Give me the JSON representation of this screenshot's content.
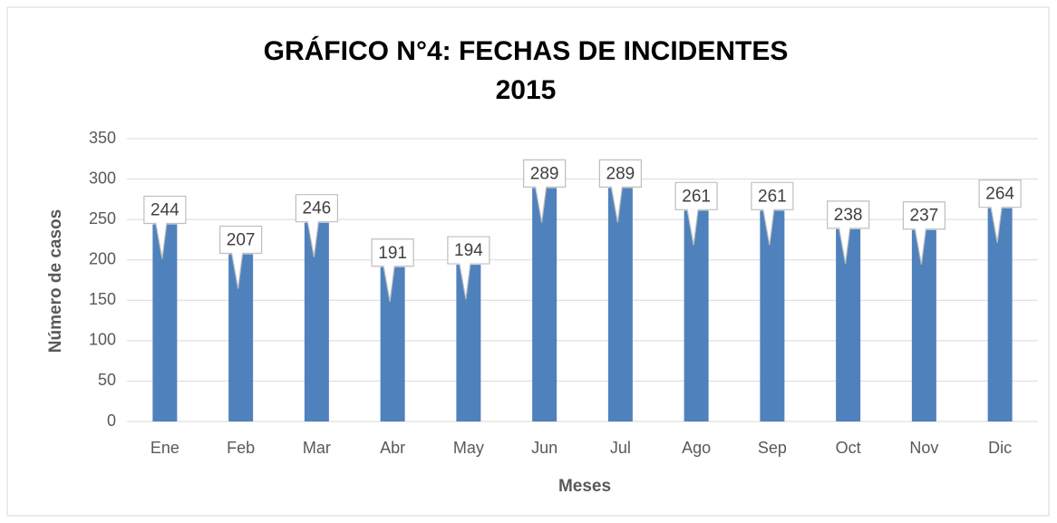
{
  "chart_data": {
    "type": "bar",
    "title": [
      "GRÁFICO N°4: FECHAS DE INCIDENTES",
      "2015"
    ],
    "x_label": "Meses",
    "y_label": "Número de casos",
    "categories": [
      "Ene",
      "Feb",
      "Mar",
      "Abr",
      "May",
      "Jun",
      "Jul",
      "Ago",
      "Sep",
      "Oct",
      "Nov",
      "Dic"
    ],
    "values": [
      244,
      207,
      246,
      191,
      194,
      289,
      289,
      261,
      261,
      238,
      237,
      264
    ],
    "color": "#4f81bd",
    "ylim": [
      0,
      350
    ],
    "yticks": [
      0,
      50,
      100,
      150,
      200,
      250,
      300,
      350
    ],
    "grid": true
  }
}
